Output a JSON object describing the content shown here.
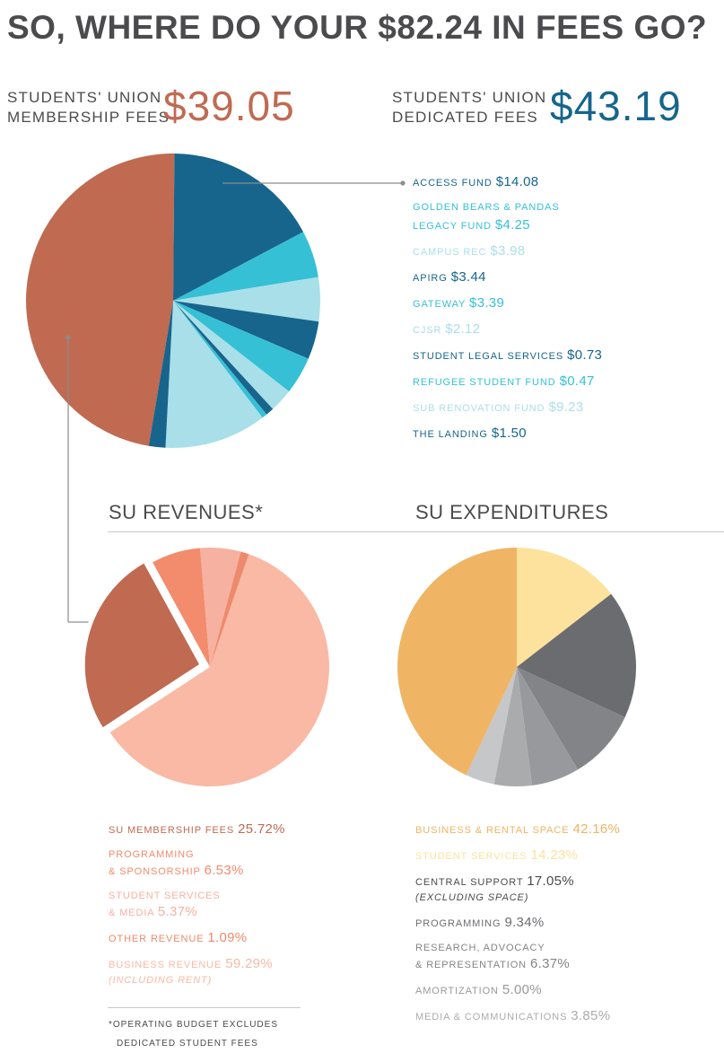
{
  "title": "SO, WHERE DO YOUR $82.24 IN FEES GO?",
  "membership": {
    "label_line1": "STUDENTS' UNION",
    "label_line2": "MEMBERSHIP FEES",
    "amount": "$39.05"
  },
  "dedicated": {
    "label_line1": "STUDENTS' UNION",
    "label_line2": "DEDICATED FEES",
    "amount": "$43.19"
  },
  "colors": {
    "membership": "#c06a52",
    "dark_blue": "#17658c",
    "teal": "#35c0d6",
    "light_blue": "#a9dfe9",
    "text_gray": "#4b4b4d",
    "rev_business": "#f9b9a4",
    "rev_programming": "#f38b6d",
    "rev_services": "#f7b1a0",
    "rev_other": "#ee8a6c",
    "exp_business": "#efb464",
    "exp_services": "#fde29d",
    "exp_central": "#6b6c70",
    "exp_programming": "#838488",
    "exp_research": "#98999c",
    "exp_amort": "#aaabad",
    "exp_media": "#c6c7c9"
  },
  "revenues_title": "SU REVENUES*",
  "expenditures_title": "SU EXPENDITURES",
  "footnote": {
    "line1": "*OPERATING BUDGET EXCLUDES",
    "line2": "DEDICATED STUDENT FEES"
  },
  "chart_data": [
    {
      "type": "pie",
      "series": [
        {
          "label": "STUDENTS' UNION MEMBERSHIP FEES",
          "value": 39.05,
          "color": "#c06a52"
        },
        {
          "label": "ACCESS FUND",
          "value": 14.08,
          "color": "#17658c"
        },
        {
          "label": "GOLDEN BEARS & PANDAS LEGACY FUND",
          "value": 4.25,
          "color": "#35c0d6"
        },
        {
          "label": "CAMPUS REC",
          "value": 3.98,
          "color": "#a9dfe9"
        },
        {
          "label": "APIRG",
          "value": 3.44,
          "color": "#17658c"
        },
        {
          "label": "GATEWAY",
          "value": 3.39,
          "color": "#35c0d6"
        },
        {
          "label": "CJSR",
          "value": 2.12,
          "color": "#a9dfe9"
        },
        {
          "label": "STUDENT LEGAL SERVICES",
          "value": 0.73,
          "color": "#17658c"
        },
        {
          "label": "REFUGEE STUDENT FUND",
          "value": 0.47,
          "color": "#35c0d6"
        },
        {
          "label": "SUB RENOVATION FUND",
          "value": 9.23,
          "color": "#a9dfe9"
        },
        {
          "label": "THE LANDING",
          "value": 1.5,
          "color": "#17658c"
        }
      ],
      "legend": [
        {
          "name": "ACCESS FUND",
          "value": "$14.08",
          "color": "#17658c"
        },
        {
          "name": "GOLDEN BEARS & PANDAS",
          "name2": "LEGACY FUND",
          "value": "$4.25",
          "color": "#35c0d6"
        },
        {
          "name": "CAMPUS REC",
          "value": "$3.98",
          "color": "#a9dfe9"
        },
        {
          "name": "APIRG",
          "value": "$3.44",
          "color": "#17658c"
        },
        {
          "name": "GATEWAY",
          "value": "$3.39",
          "color": "#35c0d6"
        },
        {
          "name": "CJSR",
          "value": "$2.12",
          "color": "#a9dfe9"
        },
        {
          "name": "STUDENT LEGAL SERVICES",
          "value": "$0.73",
          "color": "#17658c"
        },
        {
          "name": "REFUGEE STUDENT FUND",
          "value": "$0.47",
          "color": "#35c0d6"
        },
        {
          "name": "SUB RENOVATION FUND",
          "value": "$9.23",
          "color": "#a9dfe9"
        },
        {
          "name": "THE LANDING",
          "value": "$1.50",
          "color": "#17658c"
        }
      ]
    },
    {
      "type": "pie",
      "title": "SU REVENUES*",
      "series": [
        {
          "label": "BUSINESS REVENUE",
          "value": 59.29,
          "color": "#f9b9a4"
        },
        {
          "label": "SU MEMBERSHIP FEES",
          "value": 25.72,
          "color": "#c06a52",
          "exploded": true
        },
        {
          "label": "PROGRAMMING & SPONSORSHIP",
          "value": 6.53,
          "color": "#f38b6d"
        },
        {
          "label": "STUDENT SERVICES & MEDIA",
          "value": 5.37,
          "color": "#f7b1a0"
        },
        {
          "label": "OTHER REVENUE",
          "value": 1.09,
          "color": "#ee8a6c"
        }
      ],
      "legend": [
        {
          "name": "SU MEMBERSHIP FEES",
          "value": "25.72%",
          "color": "#c06a52"
        },
        {
          "name": "PROGRAMMING",
          "name2": "& SPONSORSHIP",
          "value": "6.53%",
          "color": "#f38b6d"
        },
        {
          "name": "STUDENT SERVICES",
          "name2": "& MEDIA",
          "value": "5.37%",
          "color": "#f7b1a0"
        },
        {
          "name": "OTHER REVENUE",
          "value": "1.09%",
          "color": "#ee8a6c"
        },
        {
          "name": "BUSINESS REVENUE",
          "value": "59.29%",
          "note": "(INCLUDING RENT)",
          "color": "#f9b9a4"
        }
      ]
    },
    {
      "type": "pie",
      "title": "SU EXPENDITURES",
      "series": [
        {
          "label": "STUDENT SERVICES",
          "value": 14.23,
          "color": "#fde29d"
        },
        {
          "label": "CENTRAL SUPPORT",
          "value": 17.05,
          "color": "#6b6c70"
        },
        {
          "label": "PROGRAMMING",
          "value": 9.34,
          "color": "#838488"
        },
        {
          "label": "RESEARCH, ADVOCACY & REPRESENTATION",
          "value": 6.37,
          "color": "#98999c"
        },
        {
          "label": "AMORTIZATION",
          "value": 5.0,
          "color": "#aaabad"
        },
        {
          "label": "MEDIA & COMMUNICATIONS",
          "value": 3.85,
          "color": "#c6c7c9"
        },
        {
          "label": "BUSINESS & RENTAL SPACE",
          "value": 42.16,
          "color": "#efb464"
        }
      ],
      "legend": [
        {
          "name": "BUSINESS & RENTAL SPACE",
          "value": "42.16%",
          "color": "#efb464"
        },
        {
          "name": "STUDENT SERVICES",
          "value": "14.23%",
          "color": "#fde29d"
        },
        {
          "name": "CENTRAL SUPPORT",
          "value": "17.05%",
          "note": "(EXCLUDING SPACE)",
          "color": "#4b4b4d"
        },
        {
          "name": "PROGRAMMING",
          "value": "9.34%",
          "color": "#6b6c70"
        },
        {
          "name": "RESEARCH, ADVOCACY",
          "name2": "& REPRESENTATION",
          "value": "6.37%",
          "color": "#838488"
        },
        {
          "name": "AMORTIZATION",
          "value": "5.00%",
          "color": "#98999c"
        },
        {
          "name": "MEDIA & COMMUNICATIONS",
          "value": "3.85%",
          "color": "#aaabad"
        }
      ]
    }
  ]
}
